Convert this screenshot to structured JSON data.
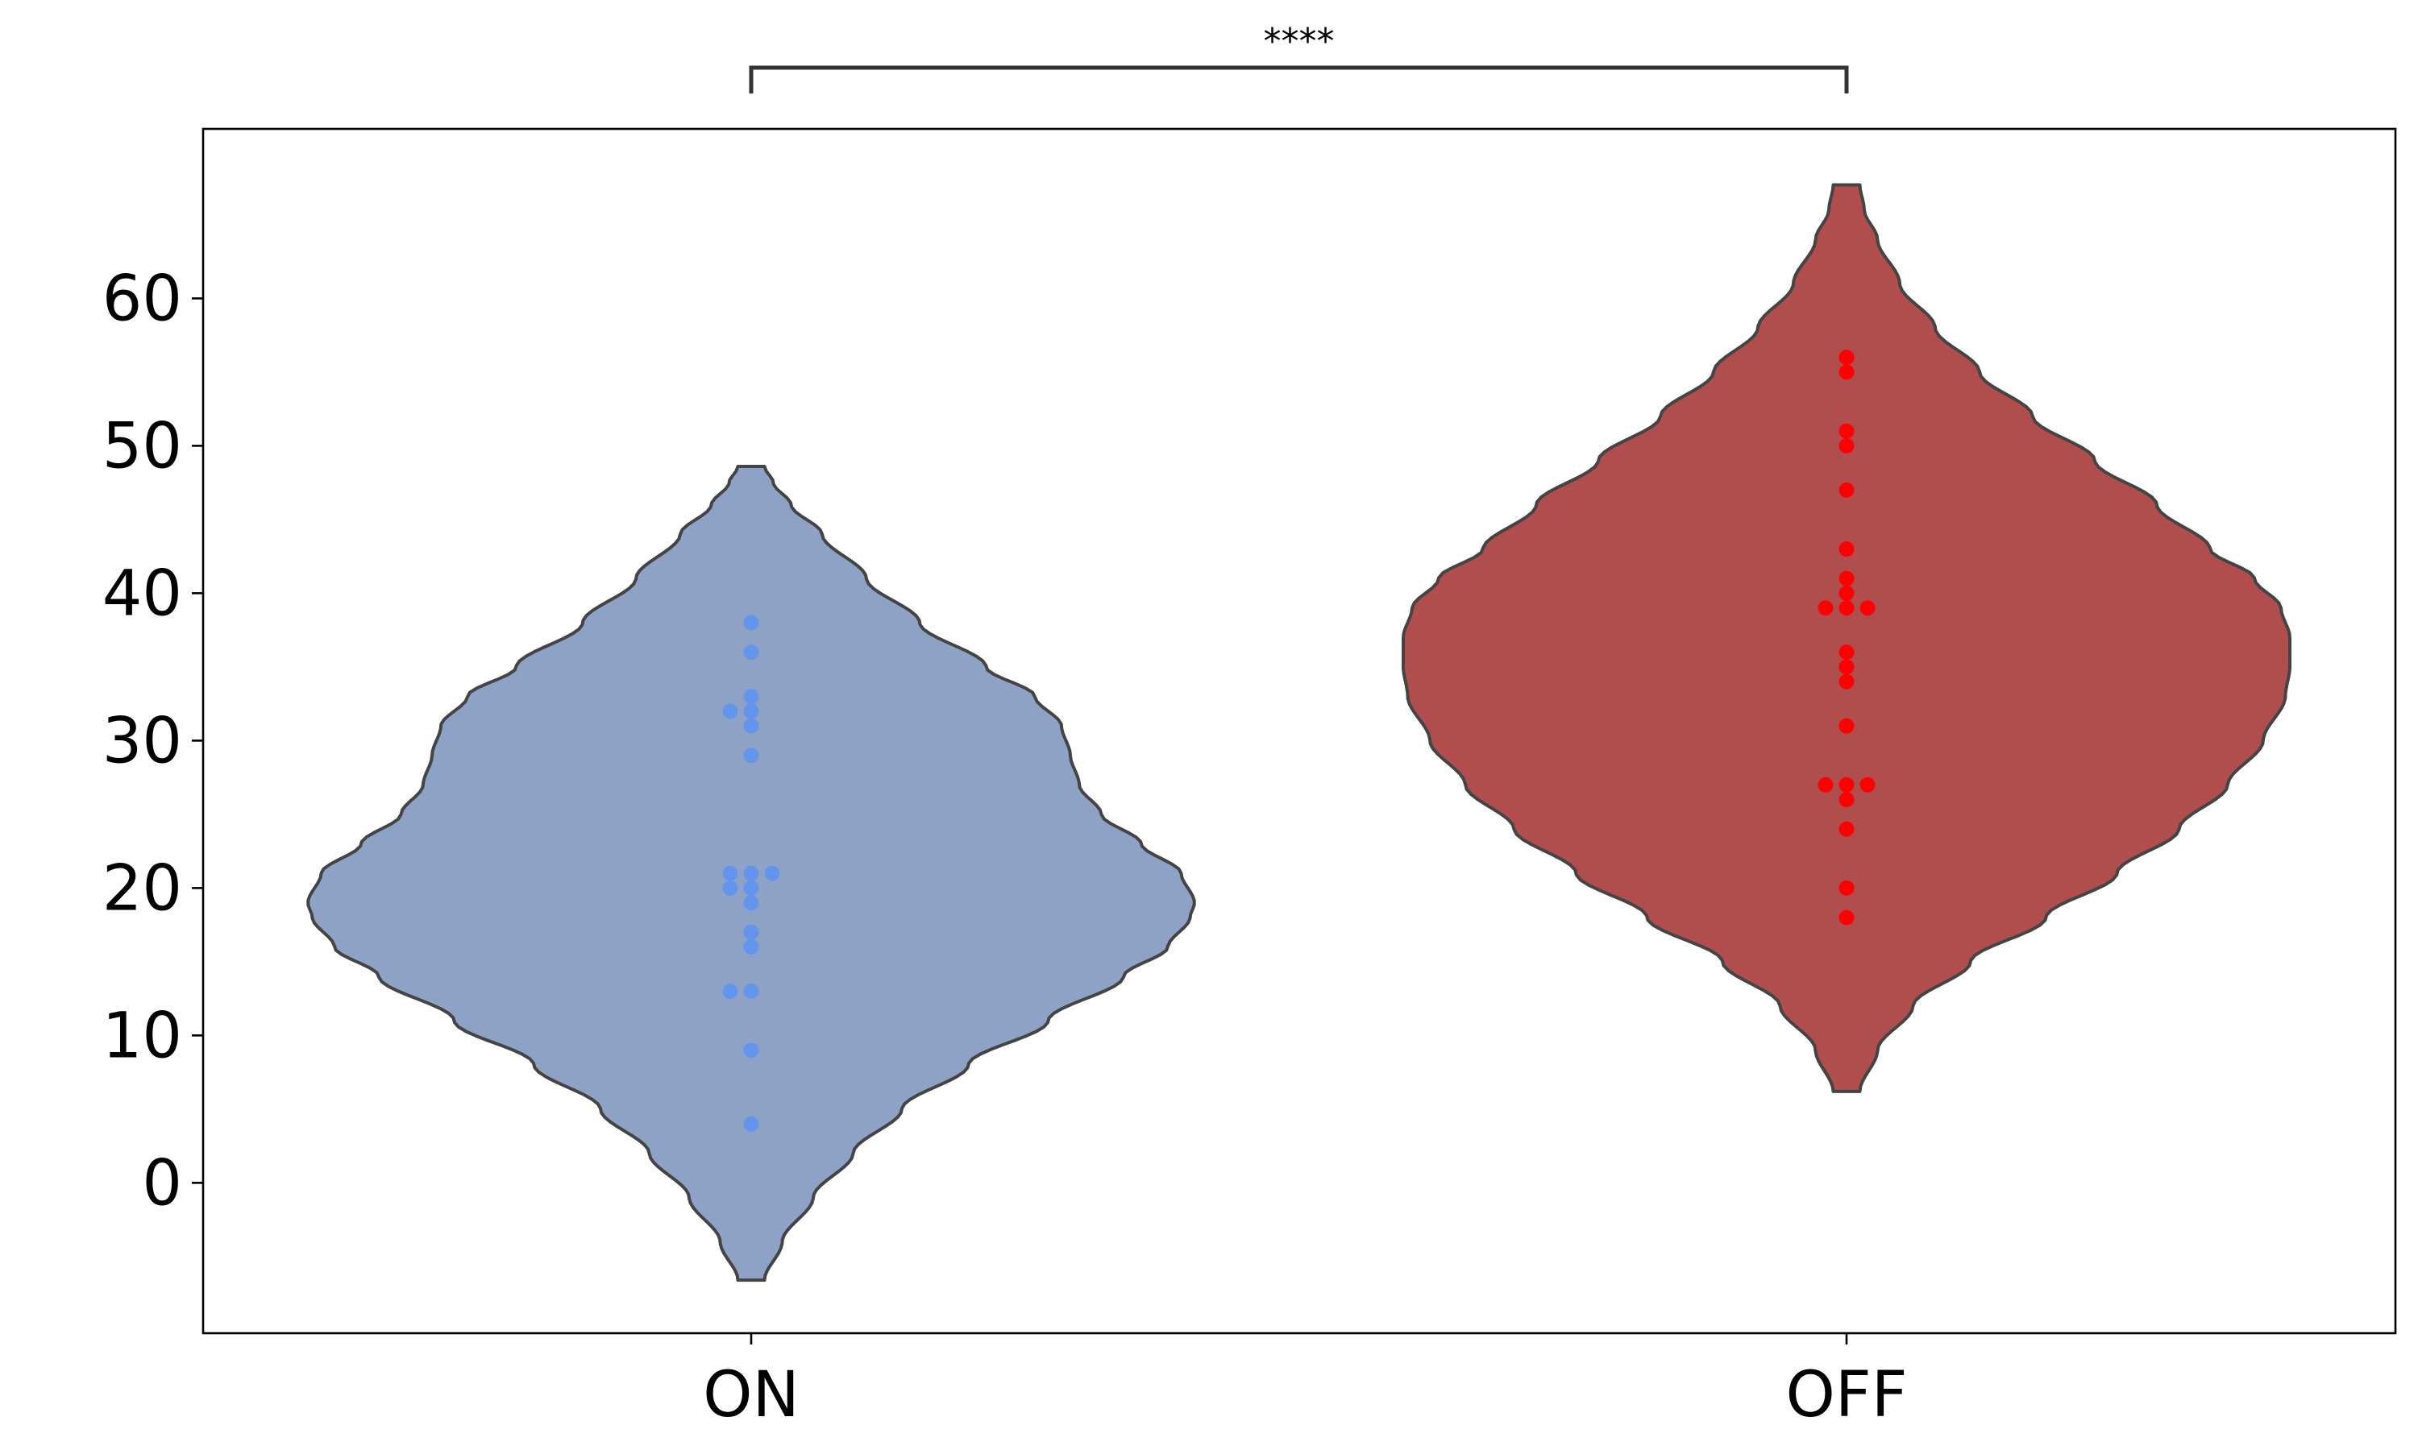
{
  "chart_data": {
    "type": "violin",
    "categories": [
      "ON",
      "OFF"
    ],
    "ylim": [
      -10.2,
      71.5
    ],
    "yticks": [
      0,
      10,
      20,
      30,
      40,
      50,
      60
    ],
    "ytick_labels": [
      "0",
      "10",
      "20",
      "30",
      "40",
      "50",
      "60"
    ],
    "xlabel": "",
    "ylabel": "",
    "grid": false,
    "series": [
      {
        "category": "ON",
        "fill_color": "#8ea2c5",
        "point_color": "#6495ed",
        "kde_range": [
          -6.6,
          48.6
        ],
        "kde_profile": [
          [
            -6.6,
            0.03
          ],
          [
            -4,
            0.07
          ],
          [
            -1,
            0.14
          ],
          [
            2,
            0.23
          ],
          [
            5,
            0.34
          ],
          [
            8,
            0.49
          ],
          [
            11,
            0.67
          ],
          [
            14,
            0.84
          ],
          [
            16,
            0.94
          ],
          [
            18,
            0.99
          ],
          [
            19,
            1.0
          ],
          [
            21,
            0.97
          ],
          [
            23,
            0.88
          ],
          [
            25,
            0.79
          ],
          [
            27,
            0.74
          ],
          [
            29,
            0.72
          ],
          [
            31,
            0.7
          ],
          [
            33,
            0.64
          ],
          [
            35,
            0.53
          ],
          [
            38,
            0.38
          ],
          [
            41,
            0.26
          ],
          [
            44,
            0.16
          ],
          [
            46,
            0.09
          ],
          [
            47.5,
            0.05
          ],
          [
            48.6,
            0.03
          ]
        ],
        "points": [
          4,
          9,
          13,
          13,
          16,
          17,
          19,
          20,
          20,
          21,
          21,
          21,
          29,
          31,
          32,
          32,
          33,
          36,
          38
        ]
      },
      {
        "category": "OFF",
        "fill_color": "#b04e4e",
        "point_color": "#ff0000",
        "kde_range": [
          6.2,
          67.7
        ],
        "kde_profile": [
          [
            6.2,
            0.03
          ],
          [
            9,
            0.07
          ],
          [
            12,
            0.15
          ],
          [
            15,
            0.28
          ],
          [
            18,
            0.45
          ],
          [
            21,
            0.61
          ],
          [
            24,
            0.75
          ],
          [
            27,
            0.86
          ],
          [
            30,
            0.94
          ],
          [
            33,
            0.99
          ],
          [
            35,
            1.0
          ],
          [
            37,
            1.0
          ],
          [
            39,
            0.98
          ],
          [
            41,
            0.92
          ],
          [
            43,
            0.82
          ],
          [
            46,
            0.7
          ],
          [
            49,
            0.56
          ],
          [
            52,
            0.42
          ],
          [
            55,
            0.3
          ],
          [
            58,
            0.2
          ],
          [
            61,
            0.12
          ],
          [
            64,
            0.07
          ],
          [
            66,
            0.04
          ],
          [
            67.7,
            0.03
          ]
        ],
        "points": [
          18,
          20,
          24,
          26,
          27,
          27,
          27,
          31,
          34,
          35,
          36,
          39,
          39,
          39,
          40,
          41,
          43,
          47,
          50,
          51,
          55,
          56
        ]
      }
    ],
    "significance": {
      "label": "****",
      "between": [
        "ON",
        "OFF"
      ]
    }
  }
}
